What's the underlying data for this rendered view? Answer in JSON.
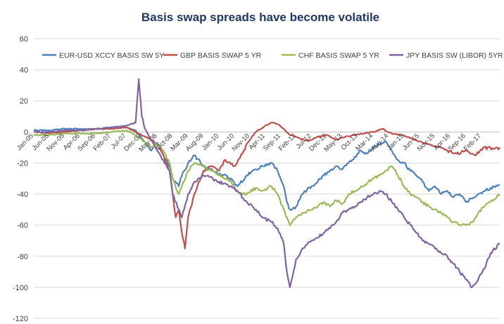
{
  "chart_data": {
    "type": "line",
    "title": "Basis swap spreads have become volatile",
    "xlabel": "",
    "ylabel": "",
    "ylim": [
      -120,
      60
    ],
    "yticks": [
      60,
      40,
      20,
      0,
      -20,
      -40,
      -60,
      -80,
      -100,
      -120
    ],
    "grid": true,
    "legend_position": "top",
    "x_tick_labels": [
      "Jan-05",
      "Jun-05",
      "Nov-05",
      "Apr-06",
      "Sep-06",
      "Feb-07",
      "Jul-07",
      "Dec-07",
      "May-08",
      "Oct-08",
      "Mar-09",
      "Aug-09",
      "Jan-10",
      "Jun-10",
      "Nov-10",
      "Apr-11",
      "Sep-11",
      "Feb-12",
      "Jul-12",
      "Dec-12",
      "May-13",
      "Oct-13",
      "Mar-14",
      "Aug-14",
      "Jan-15",
      "Jun-15",
      "Nov-15",
      "Apr-16",
      "Sep-16",
      "Feb-17"
    ],
    "x_tick_dates": [
      "2005-01",
      "2005-06",
      "2005-11",
      "2006-04",
      "2006-09",
      "2007-02",
      "2007-07",
      "2007-12",
      "2008-05",
      "2008-10",
      "2009-03",
      "2009-08",
      "2010-01",
      "2010-06",
      "2010-11",
      "2011-04",
      "2011-09",
      "2012-02",
      "2012-07",
      "2012-12",
      "2013-05",
      "2013-10",
      "2014-03",
      "2014-08",
      "2015-01",
      "2015-06",
      "2015-11",
      "2016-04",
      "2016-09",
      "2017-02"
    ],
    "x_range": [
      "2005-01",
      "2017-08"
    ],
    "series": [
      {
        "name": "EUR-USD XCCY BASIS SW 5Y",
        "color": "#4f81bd",
        "x": [
          "2005-01",
          "2005-06",
          "2005-11",
          "2006-04",
          "2006-09",
          "2007-02",
          "2007-07",
          "2007-10",
          "2007-12",
          "2008-03",
          "2008-05",
          "2008-07",
          "2008-09",
          "2008-10",
          "2008-12",
          "2009-01",
          "2009-03",
          "2009-05",
          "2009-08",
          "2009-11",
          "2010-01",
          "2010-05",
          "2010-07",
          "2010-10",
          "2011-01",
          "2011-03",
          "2011-06",
          "2011-08",
          "2011-10",
          "2011-11",
          "2011-12",
          "2012-02",
          "2012-04",
          "2012-07",
          "2012-09",
          "2012-11",
          "2013-01",
          "2013-03",
          "2013-05",
          "2013-07",
          "2013-09",
          "2013-11",
          "2014-01",
          "2014-03",
          "2014-05",
          "2014-07",
          "2014-09",
          "2014-11",
          "2015-01",
          "2015-03",
          "2015-05",
          "2015-07",
          "2015-09",
          "2015-11",
          "2016-01",
          "2016-03",
          "2016-05",
          "2016-07",
          "2016-09",
          "2016-11",
          "2017-01",
          "2017-03",
          "2017-05",
          "2017-08"
        ],
        "values": [
          1,
          1,
          2,
          2,
          2,
          2,
          3,
          1,
          -4,
          -12,
          -7,
          -15,
          -22,
          -30,
          -35,
          -28,
          -20,
          -15,
          -22,
          -25,
          -27,
          -30,
          -35,
          -28,
          -24,
          -22,
          -20,
          -25,
          -35,
          -45,
          -50,
          -48,
          -40,
          -35,
          -32,
          -28,
          -25,
          -22,
          -24,
          -20,
          -16,
          -12,
          -14,
          -10,
          -8,
          -6,
          -12,
          -18,
          -20,
          -25,
          -28,
          -32,
          -38,
          -35,
          -40,
          -38,
          -42,
          -40,
          -45,
          -43,
          -40,
          -38,
          -36,
          -34
        ]
      },
      {
        "name": "GBP BASIS SWAP     5 YR",
        "color": "#c0504d",
        "x": [
          "2005-01",
          "2005-06",
          "2005-11",
          "2006-04",
          "2006-09",
          "2007-02",
          "2007-07",
          "2007-10",
          "2007-12",
          "2008-03",
          "2008-05",
          "2008-07",
          "2008-09",
          "2008-10",
          "2008-11",
          "2008-12",
          "2009-01",
          "2009-02",
          "2009-03",
          "2009-05",
          "2009-08",
          "2009-11",
          "2010-01",
          "2010-03",
          "2010-06",
          "2010-09",
          "2010-11",
          "2011-01",
          "2011-04",
          "2011-06",
          "2011-08",
          "2011-10",
          "2011-12",
          "2012-03",
          "2012-06",
          "2012-09",
          "2012-12",
          "2013-03",
          "2013-06",
          "2013-09",
          "2013-12",
          "2014-03",
          "2014-06",
          "2014-09",
          "2014-12",
          "2015-03",
          "2015-06",
          "2015-09",
          "2015-12",
          "2016-03",
          "2016-06",
          "2016-09",
          "2016-12",
          "2017-03",
          "2017-06",
          "2017-08"
        ],
        "values": [
          0,
          -1,
          0,
          1,
          2,
          2,
          3,
          0,
          -2,
          -5,
          -8,
          -15,
          -25,
          -40,
          -55,
          -50,
          -65,
          -75,
          -55,
          -40,
          -25,
          -22,
          -25,
          -18,
          -22,
          -12,
          -5,
          0,
          4,
          6,
          5,
          2,
          -2,
          -4,
          -6,
          -3,
          -2,
          -5,
          -3,
          -2,
          -1,
          0,
          2,
          -1,
          -2,
          -4,
          -6,
          -8,
          -10,
          -12,
          -14,
          -12,
          -15,
          -10,
          -11,
          -10
        ]
      },
      {
        "name": "CHF BASIS SWAP     5 YR",
        "color": "#9bbb59",
        "x": [
          "2005-01",
          "2005-06",
          "2005-11",
          "2006-04",
          "2006-09",
          "2007-02",
          "2007-07",
          "2007-10",
          "2007-12",
          "2008-03",
          "2008-05",
          "2008-07",
          "2008-09",
          "2008-10",
          "2008-12",
          "2009-01",
          "2009-03",
          "2009-05",
          "2009-08",
          "2009-11",
          "2010-01",
          "2010-05",
          "2010-07",
          "2010-10",
          "2011-01",
          "2011-03",
          "2011-06",
          "2011-08",
          "2011-10",
          "2011-11",
          "2011-12",
          "2012-02",
          "2012-04",
          "2012-07",
          "2012-09",
          "2012-11",
          "2013-01",
          "2013-03",
          "2013-05",
          "2013-07",
          "2013-09",
          "2013-11",
          "2014-01",
          "2014-03",
          "2014-05",
          "2014-07",
          "2014-09",
          "2014-11",
          "2015-01",
          "2015-03",
          "2015-05",
          "2015-07",
          "2015-09",
          "2015-11",
          "2016-01",
          "2016-03",
          "2016-05",
          "2016-07",
          "2016-09",
          "2016-11",
          "2017-01",
          "2017-03",
          "2017-05",
          "2017-08"
        ],
        "values": [
          -2,
          -2,
          -1,
          -1,
          -1,
          0,
          1,
          -2,
          -5,
          -10,
          -8,
          -12,
          -20,
          -30,
          -40,
          -35,
          -25,
          -20,
          -22,
          -25,
          -28,
          -32,
          -38,
          -40,
          -36,
          -38,
          -35,
          -40,
          -50,
          -55,
          -60,
          -55,
          -52,
          -50,
          -48,
          -45,
          -48,
          -44,
          -46,
          -40,
          -38,
          -35,
          -33,
          -30,
          -28,
          -25,
          -22,
          -28,
          -35,
          -40,
          -42,
          -45,
          -48,
          -50,
          -52,
          -55,
          -58,
          -60,
          -60,
          -58,
          -52,
          -48,
          -45,
          -40
        ]
      },
      {
        "name": "JPY BASIS SW (LIBOR) 5YR",
        "color": "#8064a2",
        "x": [
          "2005-01",
          "2005-06",
          "2005-11",
          "2006-04",
          "2006-09",
          "2007-02",
          "2007-07",
          "2007-10",
          "2007-11",
          "2007-12",
          "2008-01",
          "2008-03",
          "2008-05",
          "2008-07",
          "2008-09",
          "2008-10",
          "2008-12",
          "2009-01",
          "2009-03",
          "2009-05",
          "2009-08",
          "2009-11",
          "2010-01",
          "2010-05",
          "2010-07",
          "2010-10",
          "2011-01",
          "2011-03",
          "2011-06",
          "2011-08",
          "2011-10",
          "2011-11",
          "2011-12",
          "2012-02",
          "2012-04",
          "2012-07",
          "2012-09",
          "2012-11",
          "2013-01",
          "2013-03",
          "2013-05",
          "2013-07",
          "2013-09",
          "2013-11",
          "2014-01",
          "2014-03",
          "2014-05",
          "2014-07",
          "2014-09",
          "2014-11",
          "2015-01",
          "2015-03",
          "2015-05",
          "2015-07",
          "2015-09",
          "2015-11",
          "2016-01",
          "2016-03",
          "2016-05",
          "2016-07",
          "2016-09",
          "2016-11",
          "2017-01",
          "2017-03",
          "2017-05",
          "2017-08"
        ],
        "values": [
          0,
          0,
          1,
          1,
          2,
          3,
          4,
          6,
          34,
          10,
          2,
          -5,
          -12,
          -18,
          -25,
          -40,
          -50,
          -55,
          -40,
          -32,
          -28,
          -30,
          -32,
          -35,
          -38,
          -45,
          -50,
          -55,
          -58,
          -62,
          -72,
          -90,
          -100,
          -82,
          -75,
          -70,
          -68,
          -65,
          -62,
          -58,
          -52,
          -50,
          -48,
          -45,
          -42,
          -40,
          -38,
          -40,
          -45,
          -50,
          -55,
          -60,
          -65,
          -70,
          -72,
          -75,
          -78,
          -80,
          -85,
          -90,
          -95,
          -100,
          -95,
          -88,
          -78,
          -72
        ]
      }
    ]
  }
}
